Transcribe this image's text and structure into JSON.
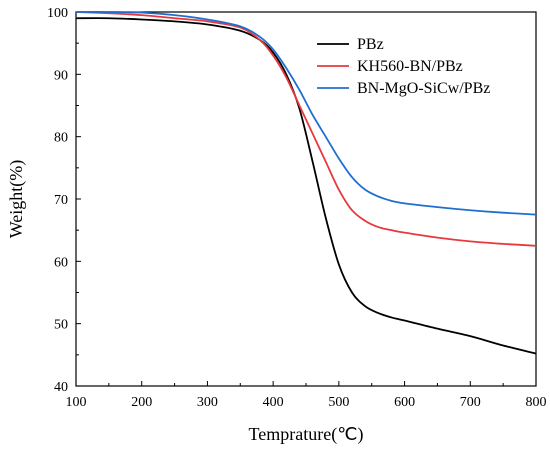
{
  "chart_data": {
    "type": "line",
    "xlabel": "Temprature(℃)",
    "ylabel": "Weight(%)",
    "xlim": [
      100,
      800
    ],
    "ylim": [
      40,
      100
    ],
    "x_ticks": [
      100,
      200,
      300,
      400,
      500,
      600,
      700,
      800
    ],
    "y_ticks": [
      40,
      50,
      60,
      70,
      80,
      90,
      100
    ],
    "grid": false,
    "legend_position": "top-right",
    "series": [
      {
        "name": "PBz",
        "color": "#000000",
        "x": [
          100,
          150,
          200,
          250,
          300,
          350,
          380,
          400,
          420,
          440,
          460,
          480,
          500,
          520,
          540,
          560,
          580,
          600,
          650,
          700,
          750,
          800
        ],
        "y": [
          99.0,
          99.0,
          98.8,
          98.5,
          98.0,
          97.0,
          95.5,
          93.5,
          90.0,
          84.5,
          76.0,
          67.0,
          59.5,
          55.0,
          52.8,
          51.7,
          51.0,
          50.5,
          49.2,
          48.0,
          46.5,
          45.2
        ]
      },
      {
        "name": "KH560-BN/PBz",
        "color": "#e8383d",
        "x": [
          100,
          150,
          200,
          250,
          300,
          350,
          380,
          400,
          420,
          440,
          460,
          480,
          500,
          520,
          540,
          560,
          580,
          600,
          650,
          700,
          750,
          800
        ],
        "y": [
          100.0,
          99.8,
          99.5,
          99.0,
          98.5,
          97.5,
          95.5,
          93.0,
          89.5,
          85.0,
          80.5,
          76.0,
          71.5,
          68.2,
          66.5,
          65.5,
          65.0,
          64.6,
          63.8,
          63.2,
          62.8,
          62.5
        ]
      },
      {
        "name": "BN-MgO-SiCw/PBz",
        "color": "#1f6fd1",
        "x": [
          100,
          150,
          200,
          250,
          300,
          350,
          380,
          400,
          420,
          440,
          460,
          480,
          500,
          520,
          540,
          560,
          580,
          600,
          650,
          700,
          750,
          800
        ],
        "y": [
          100.0,
          100.0,
          99.9,
          99.5,
          98.8,
          97.7,
          96.0,
          94.0,
          91.0,
          87.5,
          83.5,
          80.0,
          76.5,
          73.5,
          71.5,
          70.4,
          69.7,
          69.3,
          68.7,
          68.2,
          67.8,
          67.5
        ]
      }
    ]
  }
}
